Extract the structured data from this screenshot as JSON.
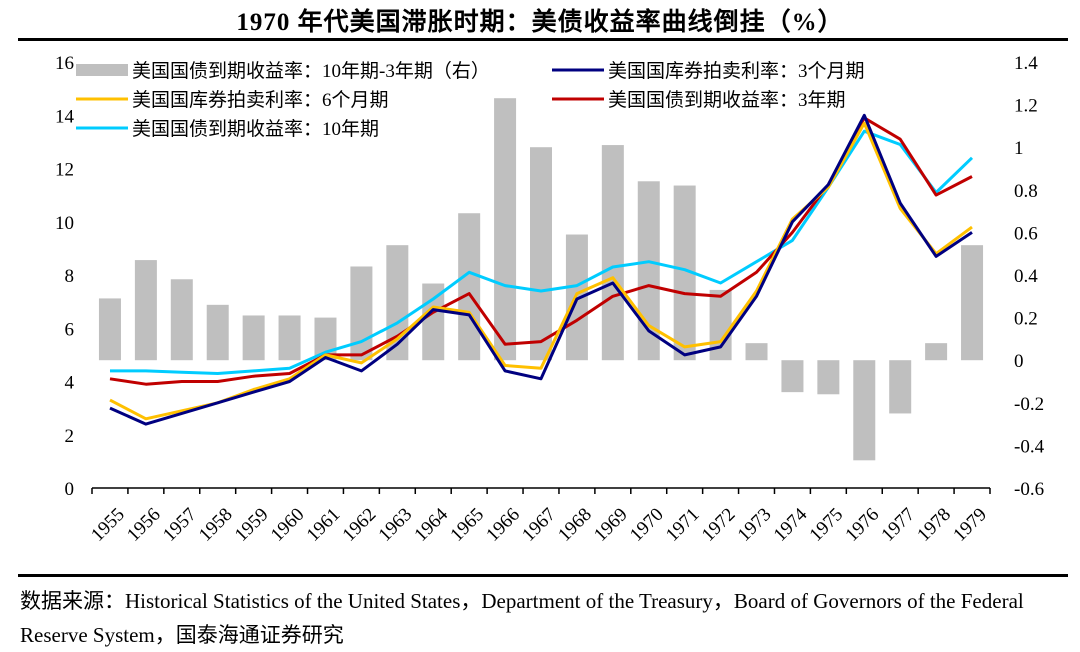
{
  "title": "1970 年代美国滞胀时期：美债收益率曲线倒挂（%）",
  "source": "数据来源：Historical Statistics of the United States，Department of the Treasury，Board of Governors of the Federal Reserve System，国泰海通证券研究",
  "chart_data": {
    "type": "bar+line",
    "title": "1970 年代美国滞胀时期：美债收益率曲线倒挂（%）",
    "xlabel": "",
    "ylabel": "",
    "categories": [
      "1955",
      "1956",
      "1957",
      "1958",
      "1959",
      "1960",
      "1961",
      "1962",
      "1963",
      "1964",
      "1965",
      "1966",
      "1967",
      "1968",
      "1969",
      "1970",
      "1971",
      "1972",
      "1973",
      "1974",
      "1975",
      "1976",
      "1977",
      "1978",
      "1979"
    ],
    "left_axis": {
      "ylim": [
        0,
        16
      ],
      "ticks": [
        "0",
        "2",
        "4",
        "6",
        "8",
        "10",
        "12",
        "14",
        "16"
      ]
    },
    "right_axis": {
      "ylim": [
        -0.6,
        1.4
      ],
      "ticks": [
        "-0.6",
        "-0.4",
        "-0.2",
        "0",
        "0.2",
        "0.4",
        "0.6",
        "0.8",
        "1",
        "1.2",
        "1.4"
      ]
    },
    "grid": false,
    "legend_position": "top",
    "series": [
      {
        "name": "美国国债到期收益率：10年期-3年期（右）",
        "type": "bar",
        "axis": "right",
        "color": "#bfbfbf",
        "values": [
          0.29,
          0.47,
          0.38,
          0.26,
          0.21,
          0.21,
          0.2,
          0.44,
          0.54,
          0.36,
          0.69,
          1.23,
          1.0,
          0.59,
          1.01,
          0.84,
          0.82,
          0.33,
          0.08,
          -0.15,
          -0.16,
          -0.47,
          -0.25,
          0.08,
          0.54
        ]
      },
      {
        "name": "美国国库券拍卖利率：3个月期",
        "type": "line",
        "axis": "left",
        "color": "#000080",
        "values": [
          3.0,
          2.4,
          2.8,
          3.2,
          3.6,
          4.0,
          4.9,
          4.4,
          5.4,
          6.7,
          6.5,
          4.4,
          4.1,
          7.1,
          7.7,
          5.9,
          5.0,
          5.3,
          7.2,
          10.0,
          11.4,
          14.0,
          10.7,
          8.7,
          9.6
        ]
      },
      {
        "name": "美国国库券拍卖利率：6个月期",
        "type": "line",
        "axis": "left",
        "color": "#ffc000",
        "values": [
          3.3,
          2.6,
          2.9,
          3.2,
          3.7,
          4.1,
          5.0,
          4.7,
          5.6,
          6.8,
          6.6,
          4.6,
          4.5,
          7.3,
          7.9,
          6.1,
          5.3,
          5.5,
          7.4,
          10.1,
          11.3,
          13.7,
          10.5,
          8.8,
          9.8
        ]
      },
      {
        "name": "美国国债到期收益率：3年期",
        "type": "line",
        "axis": "left",
        "color": "#c00000",
        "values": [
          4.1,
          3.9,
          4.0,
          4.0,
          4.2,
          4.3,
          5.0,
          5.0,
          5.7,
          6.6,
          7.3,
          5.4,
          5.5,
          6.3,
          7.2,
          7.6,
          7.3,
          7.2,
          8.1,
          9.6,
          11.4,
          13.9,
          13.1,
          11.0,
          11.7
        ]
      },
      {
        "name": "美国国债到期收益率：10年期",
        "type": "line",
        "axis": "left",
        "color": "#00ccff",
        "values": [
          4.4,
          4.4,
          4.35,
          4.3,
          4.4,
          4.5,
          5.1,
          5.5,
          6.2,
          7.1,
          8.1,
          7.6,
          7.4,
          7.6,
          8.3,
          8.5,
          8.2,
          7.7,
          8.5,
          9.3,
          11.3,
          13.4,
          12.9,
          11.1,
          12.4
        ]
      }
    ]
  },
  "legend": [
    {
      "label": "美国国债到期收益率：10年期-3年期（右）",
      "kind": "bar",
      "color": "#bfbfbf"
    },
    {
      "label": "美国国库券拍卖利率：3个月期",
      "kind": "line",
      "color": "#000080"
    },
    {
      "label": "美国国库券拍卖利率：6个月期",
      "kind": "line",
      "color": "#ffc000"
    },
    {
      "label": "美国国债到期收益率：3年期",
      "kind": "line",
      "color": "#c00000"
    },
    {
      "label": "美国国债到期收益率：10年期",
      "kind": "line",
      "color": "#00ccff"
    }
  ]
}
